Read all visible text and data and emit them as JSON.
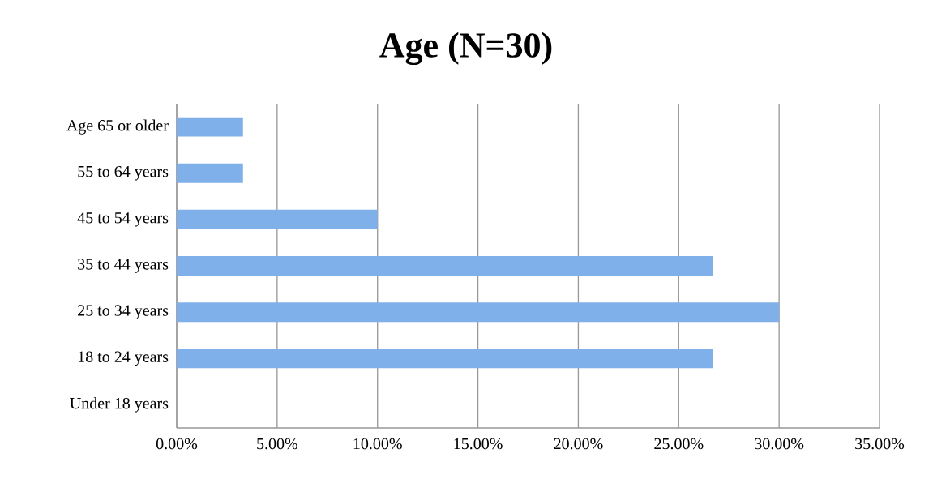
{
  "chart_data": {
    "type": "bar",
    "orientation": "horizontal",
    "title": "Age (N=30)",
    "categories": [
      "Age 65 or older",
      "55 to 64 years",
      "45 to 54 years",
      "35 to 44 years",
      "25 to 34 years",
      "18 to 24 years",
      "Under 18 years"
    ],
    "values": [
      3.3,
      3.3,
      10,
      26.7,
      30,
      26.7,
      0
    ],
    "color": "#7fb0ea",
    "xlim": [
      0,
      35
    ],
    "xticks": [
      {
        "value": 0,
        "label": "0.00%"
      },
      {
        "value": 5,
        "label": "5.00%"
      },
      {
        "value": 10,
        "label": "10.00%"
      },
      {
        "value": 15,
        "label": "15.00%"
      },
      {
        "value": 20,
        "label": "20.00%"
      },
      {
        "value": 25,
        "label": "25.00%"
      },
      {
        "value": 30,
        "label": "30.00%"
      },
      {
        "value": 35,
        "label": "35.00%"
      }
    ],
    "grid": "x"
  }
}
